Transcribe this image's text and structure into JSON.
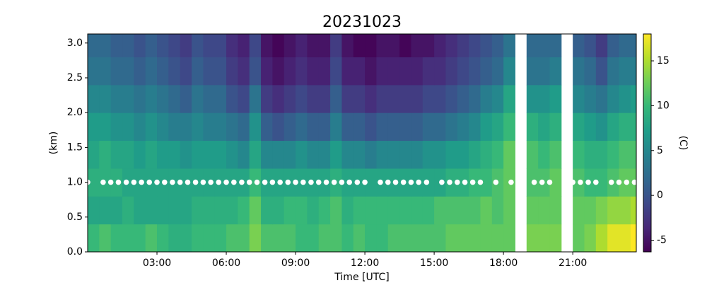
{
  "chart_data": {
    "type": "heatmap",
    "title": "20231023",
    "xlabel": "Time [UTC]",
    "ylabel": "(km)",
    "colorbar_label": "(C)",
    "colormap": "viridis",
    "xlim": [
      0,
      23.75
    ],
    "ylim": [
      0,
      3.13
    ],
    "xticks": [
      {
        "value": 3,
        "label": "03:00"
      },
      {
        "value": 6,
        "label": "06:00"
      },
      {
        "value": 9,
        "label": "09:00"
      },
      {
        "value": 12,
        "label": "12:00"
      },
      {
        "value": 15,
        "label": "15:00"
      },
      {
        "value": 18,
        "label": "18:00"
      },
      {
        "value": 21,
        "label": "21:00"
      }
    ],
    "yticks": [
      {
        "value": 0,
        "label": "0.0"
      },
      {
        "value": 0.5,
        "label": "0.5"
      },
      {
        "value": 1,
        "label": "1.0"
      },
      {
        "value": 1.5,
        "label": "1.5"
      },
      {
        "value": 2,
        "label": "2.0"
      },
      {
        "value": 2.5,
        "label": "2.5"
      },
      {
        "value": 3,
        "label": "3.0"
      }
    ],
    "clim": [
      -6.3,
      18
    ],
    "cticks": [
      -5,
      0,
      5,
      10,
      15
    ],
    "xbins": [
      0,
      0.5,
      1,
      1.5,
      2,
      2.5,
      3,
      3.5,
      4,
      4.5,
      5,
      5.5,
      6,
      6.5,
      7,
      7.5,
      8,
      8.5,
      9,
      9.5,
      10,
      10.5,
      11,
      11.5,
      12,
      12.5,
      13,
      13.5,
      14,
      14.5,
      15,
      15.5,
      16,
      16.5,
      17,
      17.5,
      18,
      18.5,
      19,
      19.5,
      20,
      20.5,
      21,
      21.5,
      22,
      22.5,
      23,
      23.5,
      24
    ],
    "ybins": [
      0,
      0.4,
      0.8,
      1.2,
      1.6,
      2.0,
      2.4,
      2.8,
      3.2
    ],
    "z": [
      [
        10,
        11,
        10,
        10,
        10,
        11,
        10,
        9,
        9,
        10,
        10,
        10,
        11,
        11,
        13,
        11,
        11,
        11,
        10,
        10,
        11,
        11,
        10,
        11,
        10,
        10,
        11,
        11,
        11,
        11,
        11,
        12,
        12,
        12,
        12,
        12,
        12,
        null,
        13,
        13,
        13,
        null,
        12,
        13,
        15,
        17,
        17,
        18
      ],
      [
        8,
        8,
        8,
        9,
        8,
        8,
        8,
        8,
        8,
        9,
        9,
        9,
        9,
        10,
        12,
        9,
        9,
        10,
        10,
        9,
        10,
        11,
        9,
        10,
        10,
        10,
        10,
        10,
        10,
        10,
        11,
        11,
        11,
        11,
        12,
        11,
        12,
        null,
        12,
        12,
        12,
        null,
        12,
        12,
        13,
        14,
        14,
        15
      ],
      [
        9,
        9,
        9,
        8,
        8,
        8,
        8,
        8,
        8,
        8,
        8,
        8,
        8,
        8,
        10,
        8,
        8,
        8,
        8,
        8,
        8,
        9,
        8,
        8,
        8,
        8,
        8,
        8,
        8,
        8,
        8,
        9,
        9,
        10,
        10,
        11,
        12,
        null,
        11,
        11,
        12,
        null,
        11,
        10,
        10,
        11,
        12,
        12
      ],
      [
        8,
        9,
        8,
        8,
        7,
        8,
        7,
        7,
        6,
        7,
        7,
        7,
        6,
        5,
        8,
        5,
        5,
        5,
        6,
        5,
        5,
        7,
        5,
        5,
        4,
        5,
        5,
        5,
        5,
        6,
        6,
        7,
        7,
        8,
        9,
        10,
        12,
        null,
        11,
        10,
        11,
        null,
        10,
        9,
        9,
        10,
        11,
        11
      ],
      [
        7,
        7,
        6,
        6,
        5,
        6,
        5,
        4,
        4,
        5,
        4,
        4,
        3,
        2,
        6,
        1,
        0,
        1,
        2,
        1,
        1,
        4,
        1,
        1,
        0,
        1,
        1,
        1,
        1,
        2,
        2,
        3,
        4,
        5,
        7,
        8,
        10,
        null,
        9,
        8,
        9,
        null,
        8,
        7,
        6,
        8,
        9,
        9
      ],
      [
        5,
        5,
        4,
        4,
        3,
        4,
        3,
        2,
        1,
        3,
        2,
        2,
        0,
        -1,
        3,
        -2,
        -3,
        -2,
        -1,
        -2,
        -2,
        1,
        -2,
        -2,
        -3,
        -2,
        -2,
        -2,
        -2,
        -1,
        -1,
        0,
        1,
        2,
        4,
        5,
        8,
        null,
        6,
        6,
        7,
        null,
        5,
        4,
        3,
        5,
        6,
        7
      ],
      [
        3,
        3,
        2,
        2,
        1,
        2,
        1,
        0,
        -1,
        1,
        0,
        0,
        -2,
        -3,
        0,
        -4,
        -5,
        -4,
        -3,
        -4,
        -4,
        -1,
        -4,
        -4,
        -5,
        -4,
        -4,
        -4,
        -4,
        -3,
        -3,
        -2,
        -1,
        0,
        1,
        2,
        5,
        null,
        3,
        3,
        4,
        null,
        3,
        2,
        0,
        3,
        4,
        4
      ],
      [
        2,
        2,
        1,
        1,
        0,
        1,
        0,
        -1,
        -2,
        0,
        -1,
        -1,
        -3,
        -4,
        -1,
        -5,
        -6,
        -5,
        -4,
        -5,
        -5,
        -2,
        -5,
        -6,
        -6,
        -5,
        -5,
        -6,
        -5,
        -5,
        -4,
        -3,
        -2,
        -1,
        0,
        1,
        3,
        null,
        2,
        2,
        2,
        null,
        1,
        0,
        -2,
        1,
        2,
        2
      ]
    ],
    "markers": {
      "color": "#ffffff",
      "x": [
        0,
        0.67,
        1,
        1.33,
        1.67,
        2,
        2.33,
        2.67,
        3,
        3.33,
        3.67,
        4,
        4.33,
        4.67,
        5,
        5.33,
        5.67,
        6,
        6.33,
        6.67,
        7,
        7.33,
        7.67,
        8,
        8.33,
        8.67,
        9,
        9.33,
        9.67,
        10,
        10.33,
        10.67,
        11,
        11.33,
        11.67,
        12,
        12.67,
        13,
        13.33,
        13.67,
        14,
        14.33,
        14.67,
        15.33,
        15.67,
        16,
        16.33,
        16.67,
        17,
        17.67,
        18.33,
        19.33,
        19.67,
        20,
        21,
        21.33,
        21.67,
        22,
        22.67,
        23,
        23.33,
        23.67
      ],
      "y": [
        1,
        1,
        1,
        1,
        1,
        1,
        1,
        1,
        1,
        1,
        1,
        1,
        1,
        1,
        1,
        1,
        1,
        1,
        1,
        1,
        1,
        1,
        1,
        1,
        1,
        1,
        1,
        1,
        1,
        1,
        1,
        1,
        1,
        1,
        1,
        1,
        1,
        1,
        1,
        1,
        1,
        1,
        1,
        1,
        1,
        1,
        1,
        1,
        1,
        1,
        1,
        1,
        1,
        1,
        1,
        1,
        1,
        1,
        1,
        1,
        1,
        1
      ]
    }
  }
}
